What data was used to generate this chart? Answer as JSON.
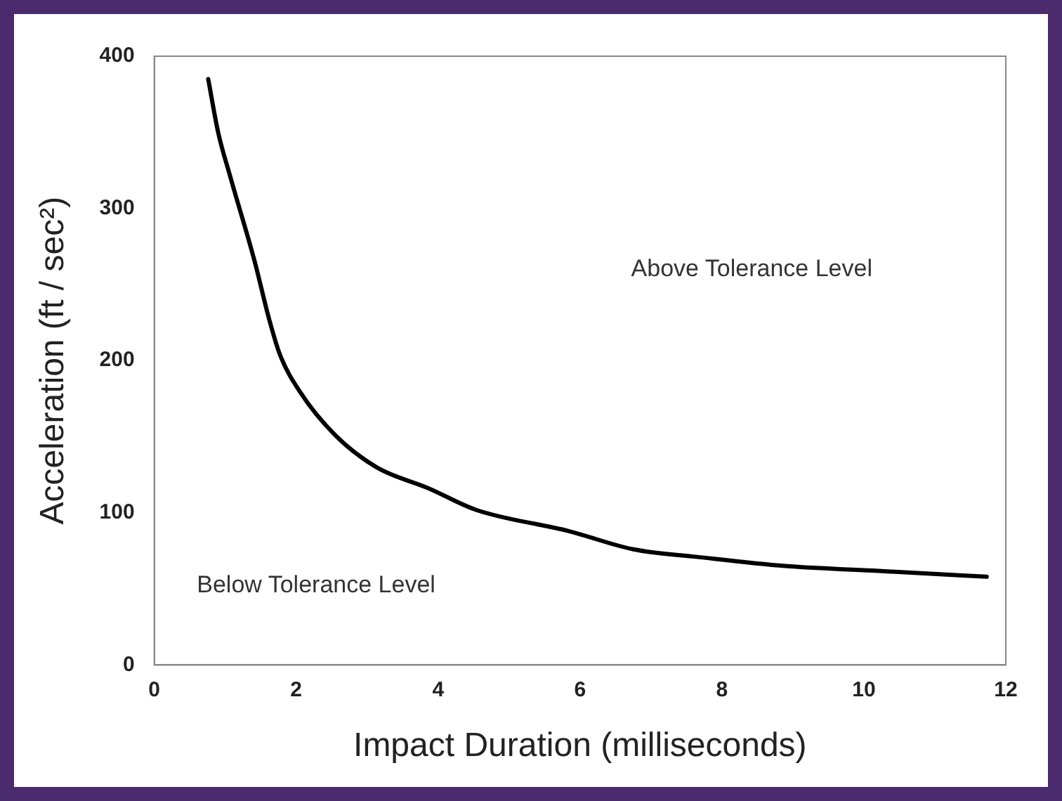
{
  "chart_data": {
    "type": "line",
    "xlabel": "Impact Duration (milliseconds)",
    "ylabel": "Acceleration (ft / sec²)",
    "xlim": [
      0,
      12
    ],
    "xticks": [
      0,
      2,
      4,
      6,
      8,
      10,
      12
    ],
    "ylim": [
      0,
      400
    ],
    "yticks": [
      0,
      100,
      200,
      300,
      400
    ],
    "grid": false,
    "legend": false,
    "marker": "none",
    "line_style": "solid",
    "series": [
      {
        "color": "#000000",
        "x": [
          0.76,
          0.9,
          1.07,
          1.41,
          1.62,
          1.77,
          2.06,
          2.55,
          3.13,
          3.87,
          4.53,
          5.84,
          6.75,
          7.65,
          8.89,
          10.12,
          11.73
        ],
        "values": [
          385,
          350,
          321,
          266,
          227,
          204,
          179,
          151,
          130,
          116,
          102,
          88,
          76,
          71,
          65,
          62,
          58
        ]
      }
    ],
    "annotations": [
      "Above Tolerance Level",
      "Below Tolerance Level"
    ]
  }
}
